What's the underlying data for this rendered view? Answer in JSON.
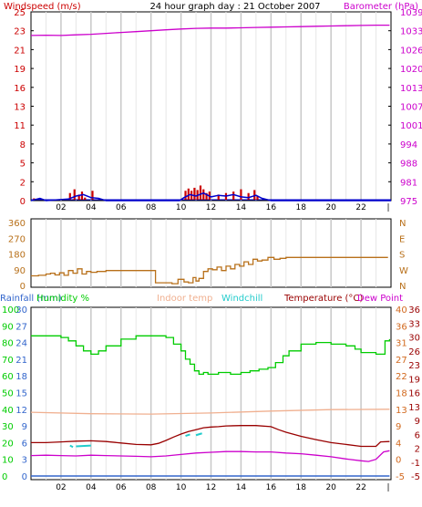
{
  "title": "24 hour graph day : 21 October 2007",
  "colors": {
    "wind": "#cc0000",
    "gust": "#0000cc",
    "baro": "#cc00cc",
    "winddir": "#b8701a",
    "humidity": "#00cc00",
    "indoor": "#f0b090",
    "windchill": "#22cccc",
    "temp": "#990000",
    "dew": "#cc00cc",
    "rainfall": "#3366cc",
    "grid": "#c8c8c8",
    "axisline": "#0000cc"
  },
  "chart_data": [
    {
      "type": "line",
      "panel": "wind-baro",
      "left_label": "Windspeed (m/s)",
      "right_label": "Barometer (hPa)",
      "y_left_ticks": [
        "0",
        "2",
        "5",
        "8",
        "11",
        "13",
        "16",
        "19",
        "21",
        "23",
        "25"
      ],
      "y_right_ticks": [
        "975",
        "981",
        "988",
        "994",
        "1001",
        "1007",
        "1013",
        "1020",
        "1026",
        "1033",
        "1039"
      ],
      "ylim_left": [
        0,
        25
      ],
      "ylim_right": [
        975,
        1039
      ],
      "x_ticks": [
        "02",
        "04",
        "06",
        "08",
        "10",
        "12",
        "14",
        "16",
        "18",
        "20",
        "22"
      ],
      "xlim": [
        0,
        24
      ],
      "grid": true,
      "series": [
        {
          "name": "Barometer",
          "axis": "right",
          "x": [
            0,
            1,
            2,
            3,
            4,
            5,
            6,
            7,
            8,
            9,
            10,
            11,
            12,
            13,
            14,
            15,
            16,
            17,
            18,
            19,
            20,
            21,
            22,
            23,
            23.9
          ],
          "y": [
            1031.0,
            1031.1,
            1031.0,
            1031.2,
            1031.4,
            1031.7,
            1032.0,
            1032.3,
            1032.6,
            1032.9,
            1033.2,
            1033.4,
            1033.5,
            1033.5,
            1033.6,
            1033.7,
            1033.8,
            1033.9,
            1034.0,
            1034.1,
            1034.2,
            1034.3,
            1034.4,
            1034.5,
            1034.5
          ]
        },
        {
          "name": "Windspeed",
          "axis": "left",
          "style": "bars",
          "x": [
            0.2,
            0.4,
            2.6,
            2.9,
            3.2,
            3.4,
            3.6,
            4.1,
            10.3,
            10.5,
            10.7,
            10.9,
            11.1,
            11.3,
            11.5,
            11.7,
            11.9,
            12.5,
            13.0,
            13.5,
            14.0,
            14.5,
            14.9,
            15.1
          ],
          "y": [
            0.3,
            0.2,
            1.0,
            1.5,
            0.8,
            1.2,
            0.4,
            1.3,
            1.3,
            1.6,
            1.3,
            1.7,
            1.4,
            2.0,
            1.5,
            1.0,
            1.2,
            0.8,
            1.0,
            1.2,
            1.5,
            1.0,
            1.4,
            0.6
          ]
        },
        {
          "name": "Gust",
          "axis": "left",
          "x": [
            0,
            0.6,
            1,
            2.5,
            3,
            3.5,
            4,
            4.5,
            5,
            9.9,
            10.2,
            10.6,
            11,
            11.5,
            12,
            12.5,
            13,
            13.5,
            14,
            14.5,
            15,
            15.4,
            16,
            24
          ],
          "y": [
            0,
            0.3,
            0,
            0.2,
            0.6,
            0.8,
            0.4,
            0.3,
            0,
            0,
            0.4,
            0.8,
            0.6,
            1.0,
            0.5,
            0.7,
            0.6,
            0.8,
            0.5,
            0.4,
            0.7,
            0.3,
            0,
            0
          ]
        }
      ]
    },
    {
      "type": "line",
      "panel": "wind-direction",
      "y_left_ticks": [
        "0",
        "90",
        "180",
        "270",
        "360"
      ],
      "y_right_ticks": [
        "N",
        "W",
        "S",
        "E",
        "N"
      ],
      "ylim_left": [
        0,
        360
      ],
      "xlim": [
        0,
        24
      ],
      "grid": true,
      "series": [
        {
          "name": "Wind direction",
          "x": [
            0,
            0.5,
            1,
            1.3,
            1.6,
            1.9,
            2.2,
            2.5,
            2.8,
            3.1,
            3.4,
            3.7,
            4,
            4.4,
            5,
            6,
            7,
            8,
            8.3,
            9,
            9.4,
            9.8,
            10.2,
            10.5,
            10.8,
            11,
            11.2,
            11.5,
            11.8,
            12.1,
            12.4,
            12.7,
            13,
            13.3,
            13.6,
            13.9,
            14.2,
            14.5,
            14.8,
            15.1,
            15.4,
            15.8,
            16.2,
            16.6,
            17,
            18,
            20,
            22,
            23.8
          ],
          "y": [
            55,
            58,
            65,
            70,
            60,
            72,
            58,
            85,
            70,
            95,
            65,
            80,
            75,
            80,
            85,
            85,
            85,
            85,
            15,
            15,
            10,
            35,
            20,
            15,
            45,
            25,
            40,
            80,
            95,
            90,
            105,
            85,
            110,
            95,
            120,
            110,
            135,
            120,
            150,
            140,
            145,
            160,
            150,
            155,
            160,
            160,
            160,
            160,
            160
          ]
        }
      ]
    },
    {
      "type": "line",
      "panel": "temp-humidity",
      "legend": [
        "Rainfall (mm)",
        "Humidity %",
        "Indoor temp",
        "Windchill",
        "Temperature (°C)",
        "Dew Point"
      ],
      "y_ticks_humidity": [
        "0",
        "10",
        "20",
        "30",
        "40",
        "50",
        "60",
        "70",
        "80",
        "90",
        "100"
      ],
      "y_ticks_rainfall": [
        "0",
        "3",
        "6",
        "9",
        "12",
        "15",
        "18",
        "21",
        "24",
        "27",
        "30"
      ],
      "y_ticks_right_a": [
        "-5",
        "0",
        "4",
        "9",
        "13",
        "18",
        "22",
        "27",
        "31",
        "36",
        "40"
      ],
      "y_ticks_right_b": [
        "-5",
        "-1",
        "2",
        "6",
        "9",
        "13",
        "16",
        "19",
        "23",
        "26",
        "30",
        "33",
        "36"
      ],
      "xlim": [
        0,
        24
      ],
      "x_ticks": [
        "02",
        "04",
        "06",
        "08",
        "10",
        "12",
        "14",
        "16",
        "18",
        "20",
        "22"
      ],
      "grid": true,
      "series": [
        {
          "name": "Humidity %",
          "axis": "humidity",
          "x": [
            0,
            1,
            2,
            2.5,
            3,
            3.5,
            4,
            4.5,
            5,
            6,
            7,
            8,
            9,
            9.5,
            10,
            10.3,
            10.6,
            10.9,
            11.2,
            11.5,
            11.8,
            12.5,
            13.3,
            14,
            14.6,
            15.2,
            15.8,
            16.3,
            16.8,
            17.2,
            18,
            19,
            20,
            21,
            21.6,
            22,
            23,
            23.3,
            23.6,
            23.9
          ],
          "y": [
            84,
            84,
            83,
            81,
            78,
            75,
            73,
            75,
            78,
            82,
            84,
            84,
            83,
            79,
            75,
            70,
            67,
            63,
            61,
            62,
            61,
            62,
            61,
            62,
            63,
            64,
            65,
            68,
            72,
            75,
            79,
            80,
            79,
            78,
            76,
            74,
            73,
            73,
            81,
            82
          ]
        },
        {
          "name": "Indoor temp",
          "axis": "temp",
          "x": [
            0,
            4,
            8,
            12,
            16,
            20,
            23.9
          ],
          "y": [
            12.2,
            11.8,
            11.7,
            12.0,
            12.5,
            12.9,
            13.0
          ]
        },
        {
          "name": "Temperature (°C)",
          "axis": "temp",
          "x": [
            0,
            1,
            2,
            3,
            4,
            5,
            6,
            7,
            8,
            8.5,
            9,
            9.5,
            10,
            10.5,
            11,
            11.5,
            12,
            12.5,
            13,
            14,
            15,
            16,
            16.5,
            17,
            18,
            19,
            20,
            21,
            22,
            23,
            23.3,
            23.9
          ],
          "y": [
            4.0,
            4.0,
            4.2,
            4.4,
            4.5,
            4.3,
            3.9,
            3.5,
            3.4,
            3.8,
            4.6,
            5.5,
            6.3,
            7.0,
            7.5,
            8.0,
            8.2,
            8.3,
            8.5,
            8.6,
            8.6,
            8.3,
            7.5,
            6.8,
            5.7,
            4.8,
            4.0,
            3.5,
            3.0,
            3.0,
            4.2,
            4.3
          ]
        },
        {
          "name": "Dew Point",
          "axis": "temp",
          "x": [
            0,
            1,
            2,
            3,
            4,
            5,
            6,
            7,
            8,
            9,
            10,
            11,
            12,
            13,
            14,
            15,
            16,
            17,
            18,
            19,
            20,
            21,
            22,
            22.5,
            23,
            23.5,
            23.9
          ],
          "y": [
            0.5,
            0.6,
            0.5,
            0.4,
            0.6,
            0.5,
            0.4,
            0.3,
            0.2,
            0.4,
            0.8,
            1.2,
            1.4,
            1.6,
            1.6,
            1.5,
            1.5,
            1.2,
            1.0,
            0.6,
            0.2,
            -0.4,
            -0.9,
            -1.1,
            -0.5,
            1.5,
            1.8
          ]
        },
        {
          "name": "Windchill",
          "axis": "temp",
          "x": [
            2.6,
            2.8,
            3.0,
            4.0,
            10.3,
            10.6,
            11.0,
            11.4
          ],
          "y": [
            3.2,
            2.8,
            3.0,
            3.2,
            5.8,
            6.2,
            6.0,
            6.5
          ]
        },
        {
          "name": "Rainfall (mm)",
          "axis": "rainfall",
          "x": [
            0,
            23.9
          ],
          "y": [
            0,
            0
          ]
        }
      ]
    }
  ]
}
